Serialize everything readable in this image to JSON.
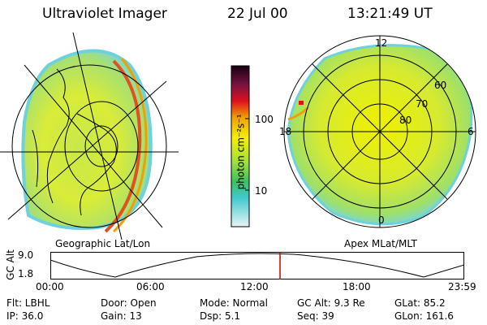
{
  "header": {
    "instrument": "Ultraviolet Imager",
    "date": "22 Jul 00",
    "time": "13:21:49 UT"
  },
  "left_panel": {
    "caption": "Geographic Lat/Lon"
  },
  "right_panel": {
    "caption": "Apex MLat/MLT",
    "mlt_labels": [
      "12",
      "18",
      "6",
      "0"
    ],
    "mlat_labels": [
      "60",
      "70",
      "80"
    ]
  },
  "colorbar": {
    "label": "photon cm⁻²s⁻¹",
    "ticks": [
      "100",
      "10"
    ]
  },
  "altitude_plot": {
    "ylabel": "GC Alt",
    "ymax": "9.0",
    "ymin": "1.8",
    "x_ticks": [
      "00:00",
      "06:00",
      "12:00",
      "18:00",
      "23:59"
    ],
    "marker_time": "13:21:49",
    "marker_color": "#cc0000"
  },
  "info": {
    "row1": {
      "filter": "Flt: LBHL",
      "door": "Door: Open",
      "mode": "Mode: Normal",
      "gc_alt": "GC Alt: 9.3 Re",
      "glat": "GLat:  85.2"
    },
    "row2": {
      "ip": "IP: 36.0",
      "gain": "Gain: 13",
      "dsp": "Dsp:    5.1",
      "seq": "Seq: 39",
      "glon": "GLon: 161.6"
    }
  }
}
